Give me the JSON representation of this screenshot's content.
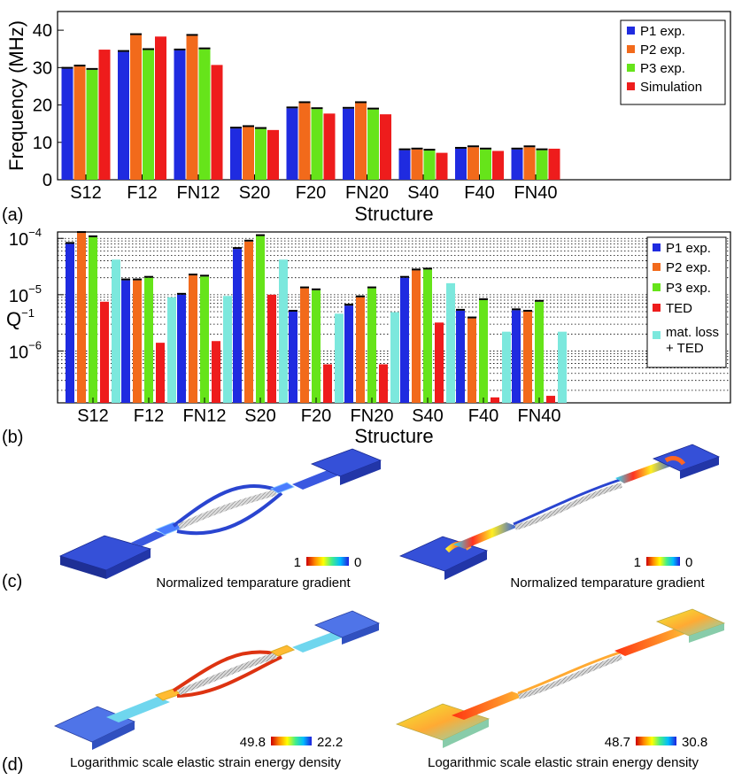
{
  "chart_data": [
    {
      "type": "bar",
      "panel_label": "(a)",
      "ylabel": "Frequency (MHz)",
      "xlabel": "Structure",
      "ylim": [
        0,
        45
      ],
      "yticks": [
        "0",
        "10",
        "20",
        "30",
        "40"
      ],
      "categories": [
        "S12",
        "F12",
        "FN12",
        "S20",
        "F20",
        "FN20",
        "S40",
        "F40",
        "FN40"
      ],
      "series": [
        {
          "name": "P1 exp.",
          "color": "#1f2be0",
          "values": [
            29.7,
            34.2,
            34.6,
            13.7,
            19.1,
            19.0,
            7.9,
            8.3,
            8.1
          ]
        },
        {
          "name": "P2 exp.",
          "color": "#f26a1b",
          "values": [
            30.3,
            38.7,
            38.5,
            14.1,
            20.5,
            20.5,
            8.1,
            8.7,
            8.7
          ]
        },
        {
          "name": "P3 exp.",
          "color": "#66e41a",
          "values": [
            29.4,
            34.7,
            34.9,
            13.6,
            18.9,
            18.8,
            7.8,
            8.1,
            7.9
          ]
        },
        {
          "name": "Simulation",
          "color": "#ee1c1c",
          "values": [
            34.8,
            38.3,
            30.7,
            13.3,
            17.7,
            17.5,
            7.2,
            7.7,
            8.3
          ]
        }
      ],
      "legend": "top-right",
      "grid": false
    },
    {
      "type": "bar",
      "panel_label": "(b)",
      "ylabel": "Q",
      "ylabel_sup": "−1",
      "xlabel": "Structure",
      "yscale": "log",
      "ylim": [
        1.2e-07,
        0.00013
      ],
      "yticks": [
        {
          "value": 0.0001,
          "base": "10",
          "exp": "−4"
        },
        {
          "value": 1e-05,
          "base": "10",
          "exp": "−5"
        },
        {
          "value": 1e-06,
          "base": "10",
          "exp": "−6"
        }
      ],
      "categories": [
        "S12",
        "F12",
        "FN12",
        "S20",
        "F20",
        "FN20",
        "S40",
        "F40",
        "FN40"
      ],
      "series": [
        {
          "name": "P1 exp.",
          "color": "#1f2be0",
          "values": [
            8e-05,
            1.8e-05,
            1e-05,
            6.5e-05,
            5e-06,
            6.4e-06,
            2e-05,
            5.2e-06,
            5.3e-06
          ]
        },
        {
          "name": "P2 exp.",
          "color": "#f26a1b",
          "values": [
            0.000125,
            1.8e-05,
            2.2e-05,
            8.8e-05,
            1.3e-05,
            9e-06,
            2.7e-05,
            3.8e-06,
            5e-06
          ]
        },
        {
          "name": "P3 exp.",
          "color": "#66e41a",
          "values": [
            0.000105,
            2e-05,
            2.1e-05,
            0.00011,
            1.2e-05,
            1.3e-05,
            2.8e-05,
            8e-06,
            7.5e-06
          ]
        },
        {
          "name": "TED",
          "color": "#ee1c1c",
          "values": [
            7.5e-06,
            1.4e-06,
            1.5e-06,
            1e-05,
            5.8e-07,
            5.8e-07,
            3.2e-06,
            1.5e-07,
            1.6e-07
          ]
        },
        {
          "name": "mat. loss + TED",
          "color": "#7ce8dd",
          "values": [
            4.2e-05,
            9e-06,
            9.5e-06,
            4.2e-05,
            4.6e-06,
            4.9e-06,
            1.6e-05,
            2.2e-06,
            2.2e-06
          ]
        }
      ],
      "legend": "top-right",
      "grid": true
    }
  ],
  "panels": {
    "c": {
      "label": "(c)",
      "left": {
        "caption": "Normalized temparature gradient",
        "scale_max": "1",
        "scale_min": "0"
      },
      "right": {
        "caption": "Normalized temparature gradient",
        "scale_max": "1",
        "scale_min": "0"
      }
    },
    "d": {
      "label": "(d)",
      "left": {
        "caption": "Logarithmic scale elastic strain energy density",
        "scale_max": "49.8",
        "scale_min": "22.2"
      },
      "right": {
        "caption": "Logarithmic scale elastic strain energy density",
        "scale_max": "48.7",
        "scale_min": "30.8"
      }
    }
  }
}
